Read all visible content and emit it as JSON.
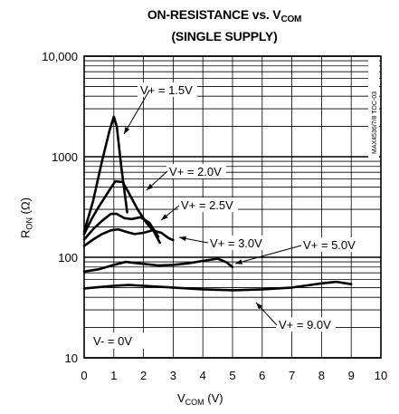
{
  "chart_data": {
    "type": "line",
    "title_main": "ON-RESISTANCE vs. V",
    "title_sub": "COM",
    "subtitle": "(SINGLE SUPPLY)",
    "xlabel_main": "V",
    "xlabel_sub": "COM",
    "xlabel_unit": " (V)",
    "ylabel_main": "R",
    "ylabel_sub": "ON",
    "ylabel_unit": " (Ω)",
    "x_ticks": [
      "0",
      "1",
      "2",
      "3",
      "4",
      "5",
      "6",
      "7",
      "8",
      "9",
      "10"
    ],
    "y_ticks": [
      "10,000",
      "1000",
      "100",
      "10"
    ],
    "xlim": [
      0,
      10
    ],
    "ylim": [
      10,
      10000
    ],
    "y_scale": "log",
    "grid": true,
    "code_label": "MAX4536/7/8 TOC-03",
    "annotation_vminus": "V- = 0V",
    "series": [
      {
        "name": "V+ = 1.5V",
        "x": [
          0.0,
          0.3,
          0.6,
          0.85,
          1.0,
          1.1,
          1.25,
          1.45
        ],
        "y": [
          180,
          360,
          900,
          1800,
          2500,
          2000,
          800,
          280
        ]
      },
      {
        "name": "V+ = 2.0V",
        "x": [
          0.0,
          0.25,
          0.5,
          0.8,
          1.05,
          1.3,
          1.5,
          1.8,
          2.1,
          2.35,
          2.55
        ],
        "y": [
          170,
          240,
          320,
          440,
          570,
          560,
          440,
          300,
          220,
          180,
          140
        ]
      },
      {
        "name": "V+ = 2.5V",
        "x": [
          0.0,
          0.3,
          0.6,
          0.9,
          1.1,
          1.35,
          1.6,
          1.9,
          2.2,
          2.5
        ],
        "y": [
          150,
          190,
          230,
          270,
          270,
          245,
          240,
          250,
          220,
          160
        ]
      },
      {
        "name": "V+ = 3.0V",
        "x": [
          0.0,
          0.3,
          0.6,
          0.9,
          1.15,
          1.4,
          1.7,
          2.0,
          2.3,
          2.6,
          2.85,
          3.0
        ],
        "y": [
          130,
          150,
          170,
          185,
          190,
          180,
          170,
          175,
          185,
          175,
          155,
          148
        ]
      },
      {
        "name": "V+ = 5.0V",
        "x": [
          0.0,
          0.5,
          1.0,
          1.4,
          2.0,
          2.5,
          3.0,
          3.5,
          4.0,
          4.5,
          4.8,
          5.0
        ],
        "y": [
          72,
          76,
          84,
          90,
          86,
          83,
          84,
          87,
          92,
          97,
          89,
          80
        ]
      },
      {
        "name": "V+ = 9.0V",
        "x": [
          0.0,
          0.5,
          1.0,
          1.5,
          2.0,
          3.0,
          4.0,
          5.0,
          6.0,
          7.0,
          7.5,
          8.0,
          8.5,
          9.0
        ],
        "y": [
          49,
          50.5,
          52,
          53,
          52,
          50,
          48,
          47,
          48,
          50,
          52.5,
          55,
          57,
          54
        ]
      }
    ],
    "labels": [
      {
        "series": "V+ = 1.5V",
        "text": "V+ = 1.5V"
      },
      {
        "series": "V+ = 2.0V",
        "text": "V+ = 2.0V"
      },
      {
        "series": "V+ = 2.5V",
        "text": "V+ = 2.5V"
      },
      {
        "series": "V+ = 3.0V",
        "text": "V+ = 3.0V"
      },
      {
        "series": "V+ = 5.0V",
        "text": "V+ = 5.0V"
      },
      {
        "series": "V+ = 9.0V",
        "text": "V+ = 9.0V"
      }
    ]
  }
}
